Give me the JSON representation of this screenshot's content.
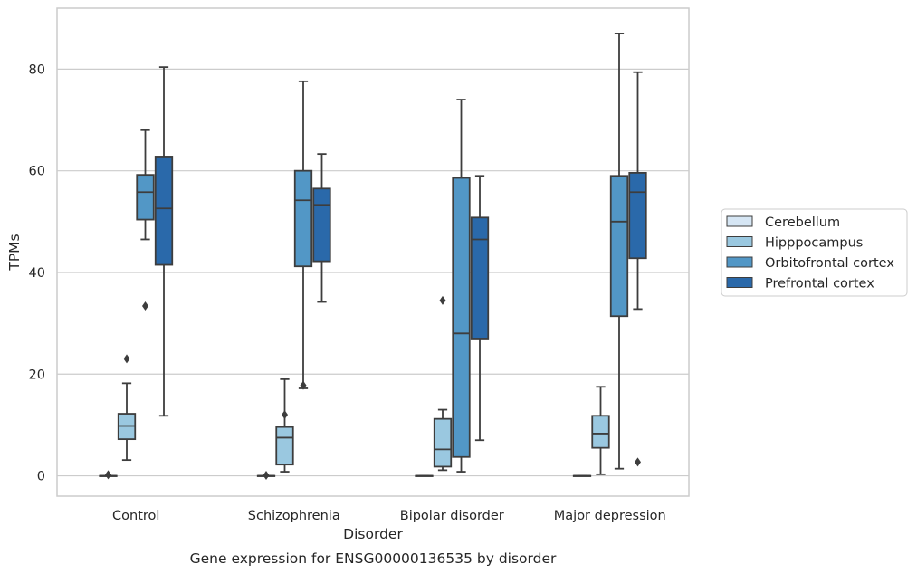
{
  "chart_data": {
    "type": "boxplot",
    "caption": "Gene expression for ENSG00000136535 by disorder",
    "xlabel": "Disorder",
    "ylabel": "TPMs",
    "ylim": [
      -4,
      92
    ],
    "yticks": [
      0,
      20,
      40,
      60,
      80
    ],
    "grid": "horizontal",
    "legend_position": "right",
    "categories": [
      "Control",
      "Schizophrenia",
      "Bipolar disorder",
      "Major depression"
    ],
    "series": [
      {
        "name": "Cerebellum",
        "color": "#d6e6f4",
        "boxes": [
          {
            "whisker_low": 0,
            "q1": 0,
            "median": 0,
            "q3": 0,
            "whisker_high": 0,
            "outliers": [
              0.2
            ]
          },
          {
            "whisker_low": 0,
            "q1": 0,
            "median": 0,
            "q3": 0,
            "whisker_high": 0,
            "outliers": [
              0.1
            ]
          },
          {
            "whisker_low": 0,
            "q1": 0,
            "median": 0,
            "q3": 0,
            "whisker_high": 0,
            "outliers": []
          },
          {
            "whisker_low": 0,
            "q1": 0,
            "median": 0,
            "q3": 0,
            "whisker_high": 0,
            "outliers": []
          }
        ]
      },
      {
        "name": "Hipppocampus",
        "color": "#9ac8e0",
        "boxes": [
          {
            "whisker_low": 3.1,
            "q1": 7.2,
            "median": 9.8,
            "q3": 12.2,
            "whisker_high": 18.2,
            "outliers": [
              23.0
            ]
          },
          {
            "whisker_low": 0.8,
            "q1": 2.2,
            "median": 7.5,
            "q3": 9.6,
            "whisker_high": 19.0,
            "outliers": [
              12.0
            ]
          },
          {
            "whisker_low": 1.1,
            "q1": 1.8,
            "median": 5.2,
            "q3": 11.2,
            "whisker_high": 13.0,
            "outliers": [
              34.5
            ]
          },
          {
            "whisker_low": 0.3,
            "q1": 5.5,
            "median": 8.3,
            "q3": 11.8,
            "whisker_high": 17.5,
            "outliers": []
          }
        ]
      },
      {
        "name": "Orbitofrontal cortex",
        "color": "#5297c6",
        "boxes": [
          {
            "whisker_low": 46.5,
            "q1": 50.4,
            "median": 55.8,
            "q3": 59.2,
            "whisker_high": 68.0,
            "outliers": [
              33.4
            ]
          },
          {
            "whisker_low": 17.2,
            "q1": 41.2,
            "median": 54.2,
            "q3": 60.0,
            "whisker_high": 77.6,
            "outliers": [
              17.8
            ]
          },
          {
            "whisker_low": 0.8,
            "q1": 3.7,
            "median": 28.0,
            "q3": 58.6,
            "whisker_high": 74.0,
            "outliers": []
          },
          {
            "whisker_low": 1.4,
            "q1": 31.4,
            "median": 50.0,
            "q3": 59.0,
            "whisker_high": 87.0,
            "outliers": []
          }
        ]
      },
      {
        "name": "Prefrontal cortex",
        "color": "#2a69aa",
        "boxes": [
          {
            "whisker_low": 11.8,
            "q1": 41.5,
            "median": 52.6,
            "q3": 62.8,
            "whisker_high": 80.4,
            "outliers": []
          },
          {
            "whisker_low": 34.2,
            "q1": 42.2,
            "median": 53.3,
            "q3": 56.5,
            "whisker_high": 63.3,
            "outliers": []
          },
          {
            "whisker_low": 7.0,
            "q1": 27.0,
            "median": 46.5,
            "q3": 50.8,
            "whisker_high": 59.0,
            "outliers": []
          },
          {
            "whisker_low": 32.8,
            "q1": 42.8,
            "median": 55.8,
            "q3": 59.6,
            "whisker_high": 79.4,
            "outliers": [
              2.7
            ]
          }
        ]
      }
    ]
  }
}
